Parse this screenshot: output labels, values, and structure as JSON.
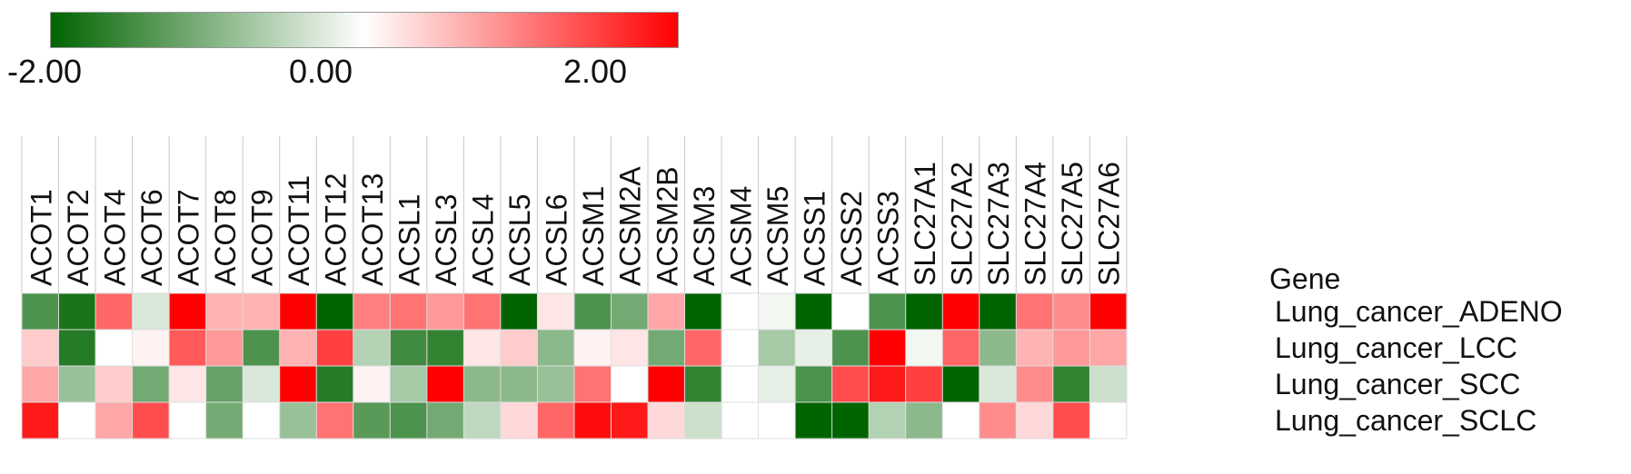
{
  "legend": {
    "min_label": "-2.00",
    "mid_label": "0.00",
    "max_label": "2.00",
    "min": -2,
    "max": 2,
    "low_color": "#006400",
    "mid_color": "#ffffff",
    "high_color": "#ff0000"
  },
  "chart_data": {
    "type": "heatmap",
    "column_axis_label": "Gene",
    "columns": [
      "ACOT1",
      "ACOT2",
      "ACOT4",
      "ACOT6",
      "ACOT7",
      "ACOT8",
      "ACOT9",
      "ACOT11",
      "ACOT12",
      "ACOT13",
      "ACSL1",
      "ACSL3",
      "ACSL4",
      "ACSL5",
      "ACSL6",
      "ACSM1",
      "ACSM2A",
      "ACSM2B",
      "ACSM3",
      "ACSM4",
      "ACSM5",
      "ACSS1",
      "ACSS2",
      "ACSS3",
      "SLC27A1",
      "SLC27A2",
      "SLC27A3",
      "SLC27A4",
      "SLC27A5",
      "SLC27A6"
    ],
    "rows": [
      "Lung_cancer_ADENO",
      "Lung_cancer_LCC",
      "Lung_cancer_SCC",
      "Lung_cancer_SCLC"
    ],
    "values": [
      [
        -1.4,
        -1.8,
        1.2,
        -0.3,
        2.0,
        0.6,
        0.6,
        2.0,
        -2.0,
        1.0,
        1.1,
        0.8,
        1.1,
        -2.0,
        0.2,
        -1.4,
        -1.1,
        0.7,
        -2.0,
        0.0,
        -0.1,
        -2.0,
        0.0,
        -1.4,
        -2.0,
        2.0,
        -2.0,
        1.1,
        0.9,
        2.0
      ],
      [
        0.4,
        -1.7,
        0.0,
        0.1,
        1.3,
        0.8,
        -1.4,
        0.6,
        1.5,
        -0.6,
        -1.5,
        -1.6,
        0.2,
        0.4,
        -0.9,
        0.1,
        0.2,
        -1.1,
        1.2,
        0.0,
        -0.7,
        -0.2,
        -1.4,
        2.0,
        -0.1,
        1.2,
        -0.9,
        0.6,
        0.8,
        0.7
      ],
      [
        0.7,
        -0.8,
        0.4,
        -1.1,
        0.2,
        -1.2,
        -0.3,
        2.0,
        -1.7,
        0.1,
        -0.7,
        2.0,
        -0.9,
        -0.9,
        -0.8,
        1.1,
        0.0,
        2.0,
        -1.6,
        0.0,
        -0.2,
        -1.4,
        1.4,
        1.8,
        1.5,
        -2.0,
        -0.3,
        0.9,
        -1.6,
        -0.4
      ],
      [
        1.8,
        0.0,
        0.7,
        1.4,
        0.0,
        -1.1,
        0.0,
        -0.8,
        1.1,
        -1.3,
        -1.4,
        -1.1,
        -0.5,
        0.3,
        1.2,
        1.9,
        1.8,
        0.3,
        -0.4,
        0.0,
        0.0,
        -2.0,
        -2.0,
        -0.6,
        -0.9,
        0.0,
        0.9,
        0.3,
        1.4,
        0.0
      ]
    ],
    "vmin": -2,
    "vmax": 2
  }
}
